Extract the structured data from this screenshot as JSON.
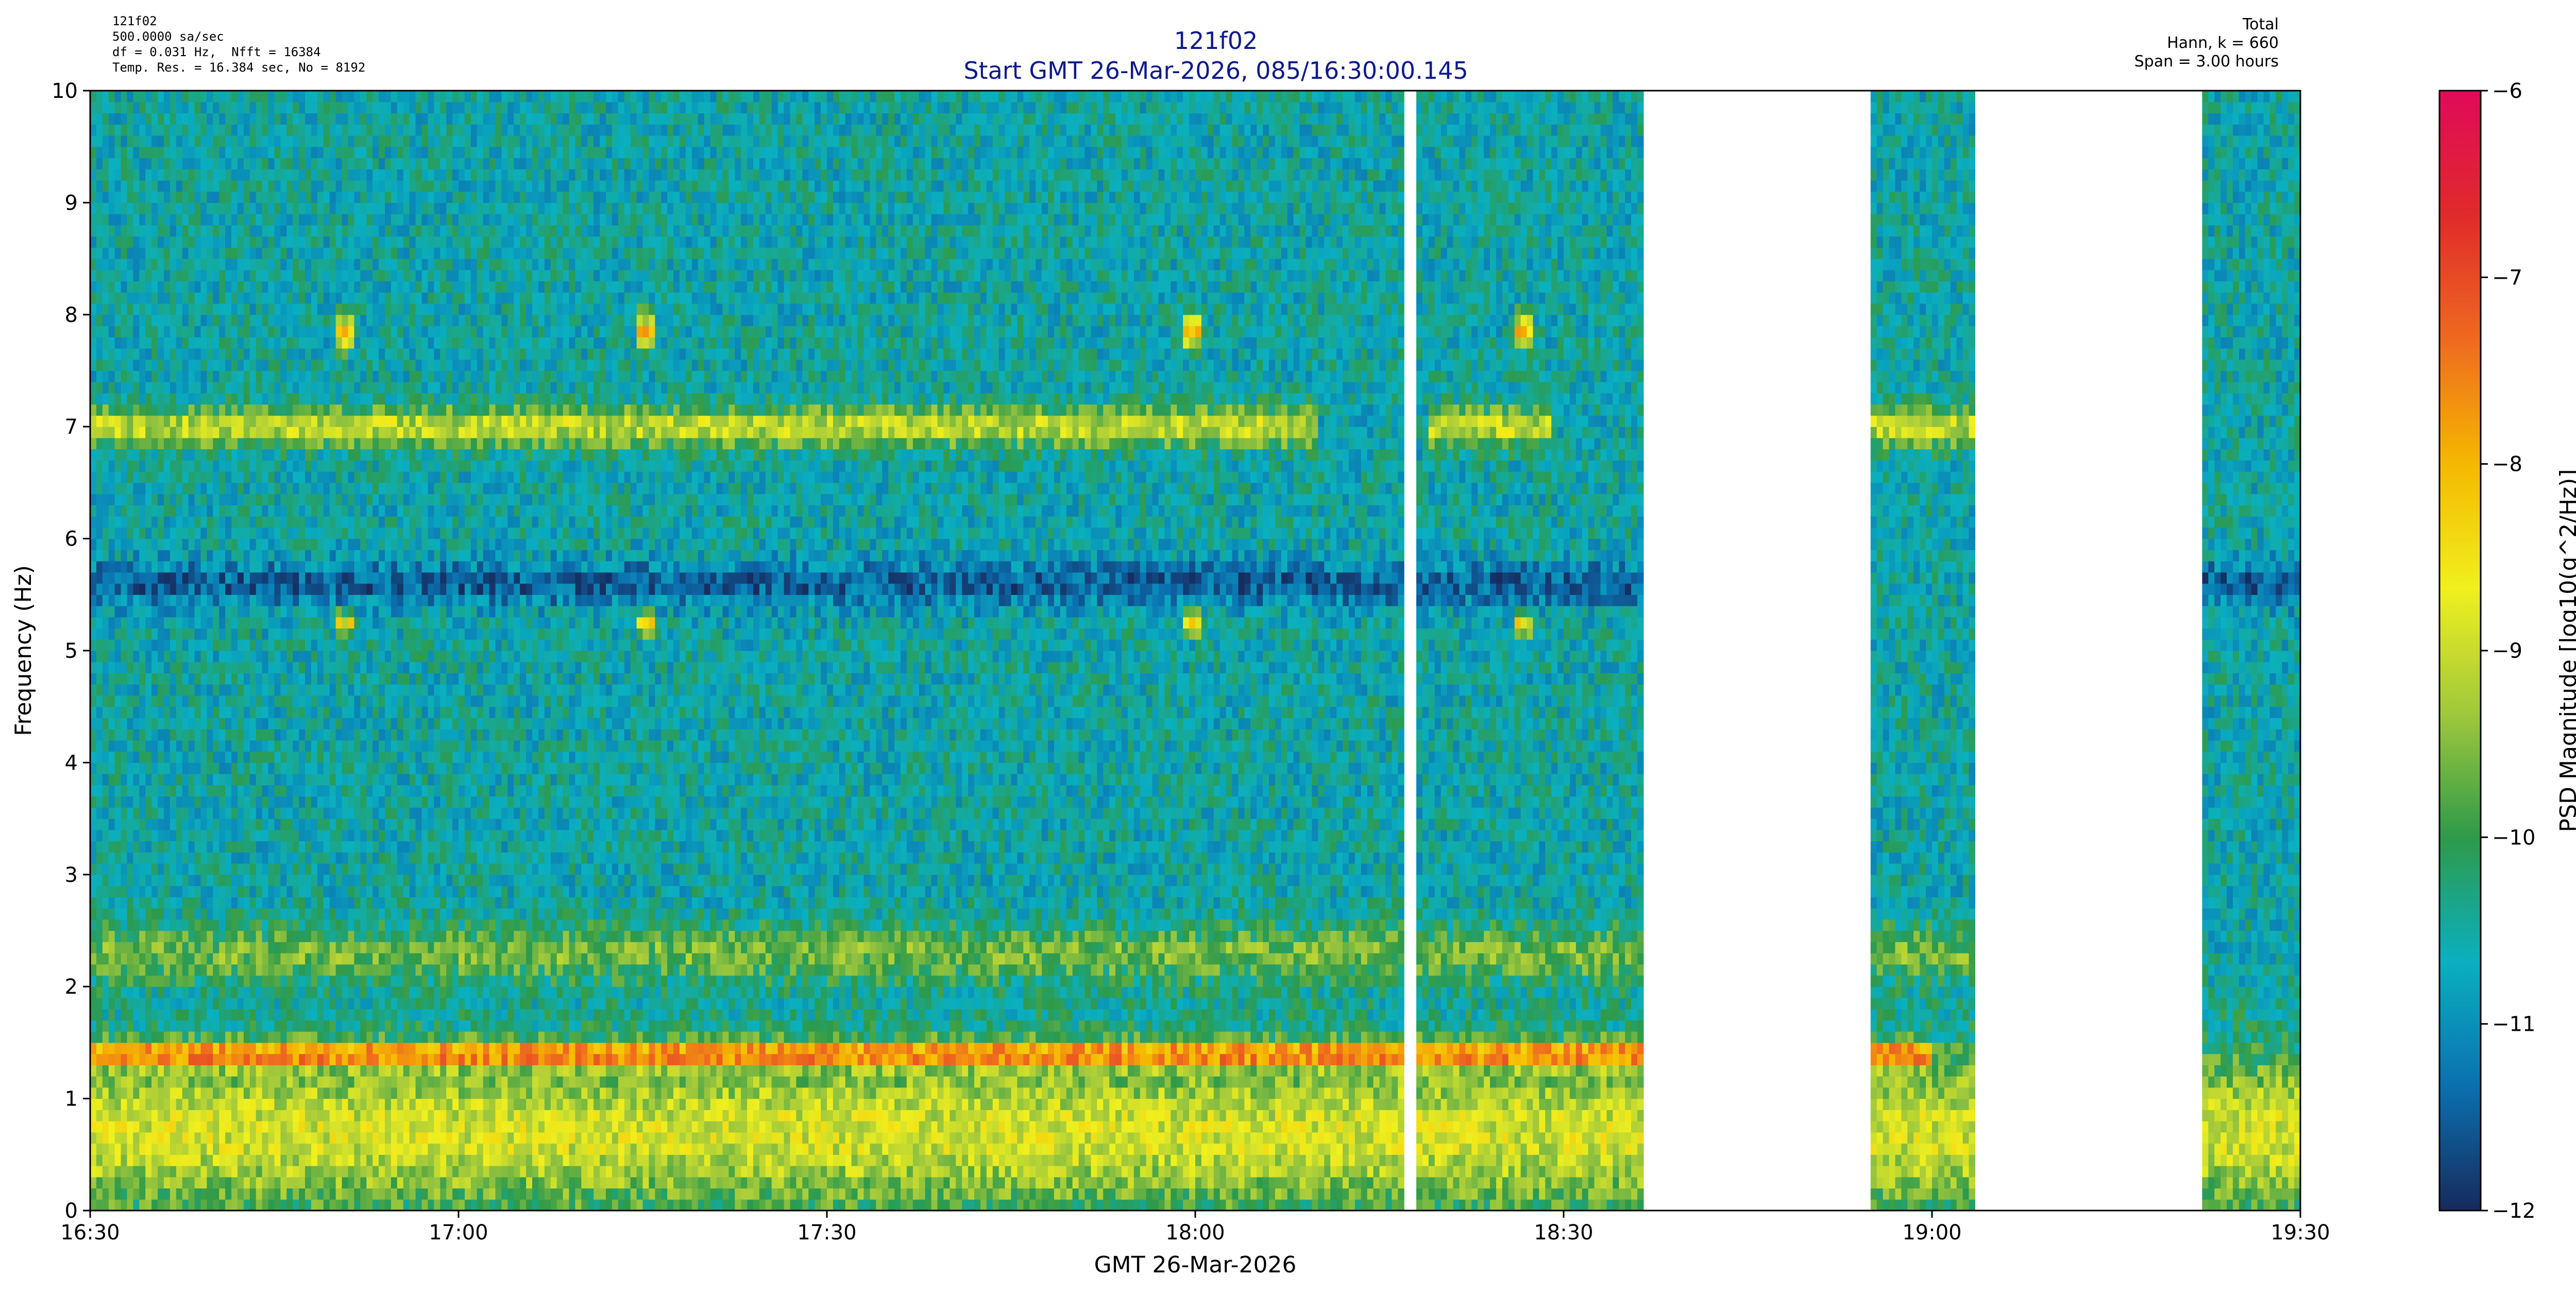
{
  "header": {
    "left_lines": [
      "121f02",
      "500.0000 sa/sec",
      "df = 0.031 Hz,  Nfft = 16384",
      "Temp. Res. = 16.384 sec, No = 8192"
    ],
    "right_lines": [
      "Total",
      "Hann, k = 660",
      "Span = 3.00 hours"
    ],
    "title": "121f02",
    "subtitle": "Start GMT 26-Mar-2026, 085/16:30:00.145"
  },
  "chart_data": {
    "type": "heatmap",
    "title": "121f02",
    "subtitle": "Start GMT 26-Mar-2026, 085/16:30:00.145",
    "xlabel": "GMT 26-Mar-2026",
    "ylabel": "Frequency (Hz)",
    "colorbar_label": "PSD Magnitude [log10(g^2/Hz)]",
    "x_tick_labels": [
      "16:30",
      "17:00",
      "17:30",
      "18:00",
      "18:30",
      "19:00",
      "19:30"
    ],
    "x_range_minutes": [
      0,
      180
    ],
    "y_ticks": [
      0,
      1,
      2,
      3,
      4,
      5,
      6,
      7,
      8,
      9,
      10
    ],
    "ylim": [
      0,
      10
    ],
    "clim": [
      -12,
      -6
    ],
    "colorbar_ticks": [
      "-12",
      "-11",
      "-10",
      "-9",
      "-8",
      "-7",
      "-6"
    ],
    "colormap": [
      "#172a5c",
      "#0b70b0",
      "#0ab0c0",
      "#2e9a4a",
      "#a0c83c",
      "#f0f01e",
      "#f5b800",
      "#ee6a20",
      "#e02a2a",
      "#e00a5a"
    ],
    "data_segments_minutes": [
      [
        0,
        107
      ],
      [
        108,
        126.5
      ],
      [
        145,
        153.7
      ],
      [
        172,
        180
      ]
    ],
    "background_level": -10.6,
    "features": [
      {
        "name": "7 Hz band",
        "freq_hz": 7.0,
        "width_hz": 0.35,
        "level": -9.0,
        "segments_minutes": [
          [
            0,
            100
          ],
          [
            109,
            119
          ],
          [
            145,
            153.7
          ]
        ]
      },
      {
        "name": "1.4 Hz band",
        "freq_hz": 1.4,
        "width_hz": 0.2,
        "level": -7.7,
        "segments_minutes": [
          [
            0,
            126.5
          ],
          [
            145,
            150
          ]
        ]
      },
      {
        "name": "low frequency broadband",
        "freq_hz": 0.7,
        "width_hz": 1.4,
        "level": -8.9,
        "segments_minutes": [
          [
            0,
            126.5
          ],
          [
            145,
            153.7
          ],
          [
            172,
            180
          ]
        ]
      },
      {
        "name": "2.3 Hz band",
        "freq_hz": 2.3,
        "width_hz": 0.5,
        "level": -9.6,
        "segments_minutes": [
          [
            0,
            126.5
          ],
          [
            145,
            153.7
          ]
        ]
      },
      {
        "name": "5.6 Hz dip",
        "freq_hz": 5.6,
        "width_hz": 0.4,
        "level": -11.5,
        "segments_minutes": [
          [
            0,
            126.5
          ],
          [
            172,
            180
          ]
        ]
      },
      {
        "name": "7.85 Hz spot A",
        "freq_hz": 7.85,
        "width_hz": 0.3,
        "level": -8.2,
        "segments_minutes": [
          [
            20,
            21.5
          ],
          [
            44.5,
            46
          ],
          [
            89,
            90.5
          ],
          [
            116,
            117.5
          ]
        ]
      },
      {
        "name": "5.25 Hz spot",
        "freq_hz": 5.25,
        "width_hz": 0.2,
        "level": -8.6,
        "segments_minutes": [
          [
            20,
            21.5
          ],
          [
            44.5,
            46
          ],
          [
            89,
            90.5
          ],
          [
            116,
            117.5
          ]
        ]
      }
    ]
  }
}
